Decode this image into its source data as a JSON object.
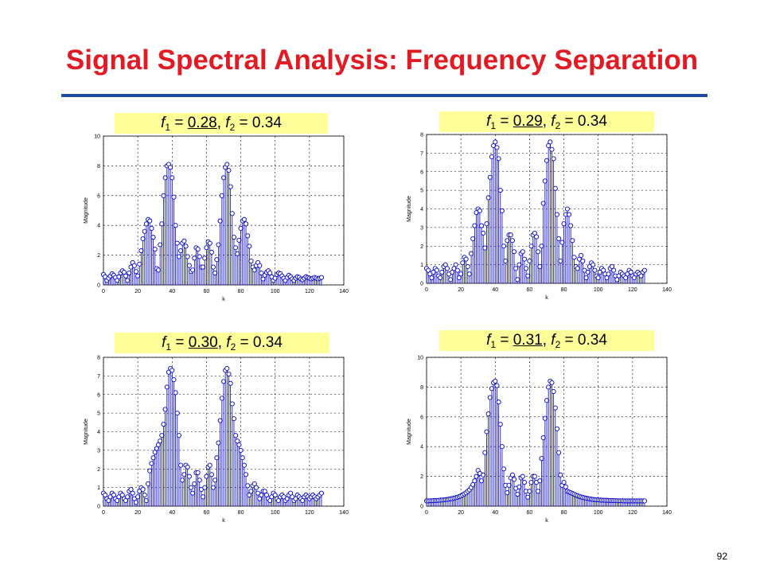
{
  "slide": {
    "title": "Signal Spectral Analysis: Frequency Separation",
    "page_number": "92",
    "title_color": "#e01b24",
    "rule_color": "#1f4aa8",
    "caption_background": "#ffff99",
    "stem_color": "#0000cc"
  },
  "chart_data": [
    {
      "type": "stem",
      "caption": {
        "f1_label": "f",
        "f1_sub": "1",
        "eq1": " = ",
        "f1_value": "0.28",
        "sep": ", ",
        "f2_label": "f",
        "f2_sub": "2",
        "eq2": " = ",
        "f2_value": "0.34"
      },
      "xlabel": "k",
      "ylabel": "Magnitude",
      "xlim": [
        0,
        140
      ],
      "ylim": [
        0,
        10
      ],
      "xticks": [
        "0",
        "20",
        "40",
        "60",
        "80",
        "100",
        "120",
        "140"
      ],
      "yticks": [
        "0",
        "2",
        "4",
        "6",
        "8",
        "10"
      ],
      "grid": true,
      "x": [
        0,
        1,
        2,
        3,
        4,
        5,
        6,
        7,
        8,
        9,
        10,
        11,
        12,
        13,
        14,
        15,
        16,
        17,
        18,
        19,
        20,
        21,
        22,
        23,
        24,
        25,
        26,
        27,
        28,
        29,
        30,
        31,
        32,
        33,
        34,
        35,
        36,
        37,
        38,
        39,
        40,
        41,
        42,
        43,
        44,
        45,
        46,
        47,
        48,
        49,
        50,
        51,
        52,
        53,
        54,
        55,
        56,
        57,
        58,
        59,
        60,
        61,
        62,
        63,
        64,
        65,
        66,
        67,
        68,
        69,
        70,
        71,
        72,
        73,
        74,
        75,
        76,
        77,
        78,
        79,
        80,
        81,
        82,
        83,
        84,
        85,
        86,
        87,
        88,
        89,
        90,
        91,
        92,
        93,
        94,
        95,
        96,
        97,
        98,
        99,
        100,
        101,
        102,
        103,
        104,
        105,
        106,
        107,
        108,
        109,
        110,
        111,
        112,
        113,
        114,
        115,
        116,
        117,
        118,
        119,
        120,
        121,
        122,
        123,
        124,
        125,
        126,
        127
      ],
      "values": [
        0.7,
        0.55,
        0.3,
        0.45,
        0.6,
        0.75,
        0.65,
        0.5,
        0.3,
        0.55,
        0.8,
        0.95,
        0.85,
        0.6,
        0.3,
        0.8,
        1.2,
        1.5,
        1.3,
        0.9,
        0.6,
        1.4,
        2.3,
        3.1,
        3.6,
        4.1,
        4.4,
        4.3,
        3.8,
        3.2,
        2.4,
        1.1,
        1.0,
        2.7,
        4.1,
        6.0,
        7.2,
        8.0,
        8.1,
        7.9,
        7.2,
        5.9,
        4.0,
        2.8,
        1.9,
        2.3,
        2.8,
        2.95,
        2.6,
        1.9,
        1.3,
        0.9,
        1.0,
        1.8,
        2.5,
        2.4,
        1.9,
        1.2,
        1.2,
        1.8,
        2.5,
        2.9,
        2.8,
        2.2,
        1.2,
        0.8,
        1.7,
        2.7,
        4.3,
        6.0,
        7.2,
        7.9,
        8.1,
        7.7,
        6.6,
        4.8,
        3.2,
        2.5,
        2.1,
        3.0,
        3.8,
        4.3,
        4.4,
        4.1,
        3.3,
        2.6,
        1.6,
        1.2,
        1.0,
        1.3,
        1.5,
        1.3,
        0.8,
        0.4,
        0.65,
        0.85,
        0.95,
        0.8,
        0.55,
        0.3,
        0.45,
        0.7,
        0.8,
        0.75,
        0.6,
        0.45,
        0.3,
        0.5,
        0.65,
        0.55,
        0.4,
        0.3,
        0.45,
        0.55,
        0.5,
        0.4,
        0.35,
        0.45,
        0.55,
        0.5,
        0.45,
        0.4,
        0.45,
        0.5,
        0.45,
        0.4,
        0.45,
        0.5
      ]
    },
    {
      "type": "stem",
      "caption": {
        "f1_label": "f",
        "f1_sub": "1",
        "eq1": " = ",
        "f1_value": "0.29",
        "sep": ", ",
        "f2_label": "f",
        "f2_sub": "2",
        "eq2": " = ",
        "f2_value": "0.34"
      },
      "xlabel": "k",
      "ylabel": "Magnitude",
      "xlim": [
        0,
        140
      ],
      "ylim": [
        0,
        8
      ],
      "xticks": [
        "0",
        "20",
        "40",
        "60",
        "80",
        "100",
        "120",
        "140"
      ],
      "yticks": [
        "0",
        "1",
        "2",
        "3",
        "4",
        "5",
        "6",
        "7",
        "8"
      ],
      "grid": true,
      "x": [
        0,
        1,
        2,
        3,
        4,
        5,
        6,
        7,
        8,
        9,
        10,
        11,
        12,
        13,
        14,
        15,
        16,
        17,
        18,
        19,
        20,
        21,
        22,
        23,
        24,
        25,
        26,
        27,
        28,
        29,
        30,
        31,
        32,
        33,
        34,
        35,
        36,
        37,
        38,
        39,
        40,
        41,
        42,
        43,
        44,
        45,
        46,
        47,
        48,
        49,
        50,
        51,
        52,
        53,
        54,
        55,
        56,
        57,
        58,
        59,
        60,
        61,
        62,
        63,
        64,
        65,
        66,
        67,
        68,
        69,
        70,
        71,
        72,
        73,
        74,
        75,
        76,
        77,
        78,
        79,
        80,
        81,
        82,
        83,
        84,
        85,
        86,
        87,
        88,
        89,
        90,
        91,
        92,
        93,
        94,
        95,
        96,
        97,
        98,
        99,
        100,
        101,
        102,
        103,
        104,
        105,
        106,
        107,
        108,
        109,
        110,
        111,
        112,
        113,
        114,
        115,
        116,
        117,
        118,
        119,
        120,
        121,
        122,
        123,
        124,
        125,
        126,
        127
      ],
      "values": [
        0.8,
        0.7,
        0.5,
        0.3,
        0.6,
        0.8,
        0.7,
        0.4,
        0.3,
        0.6,
        0.9,
        1.0,
        0.8,
        0.5,
        0.2,
        0.6,
        0.8,
        1.0,
        0.7,
        0.3,
        0.5,
        1.1,
        1.4,
        1.3,
        0.9,
        0.5,
        1.6,
        2.4,
        3.1,
        3.8,
        4.0,
        3.9,
        3.1,
        2.7,
        1.9,
        3.2,
        4.6,
        5.7,
        6.8,
        7.4,
        7.6,
        7.3,
        6.7,
        5.0,
        3.9,
        2.0,
        1.2,
        2.3,
        2.6,
        2.6,
        2.3,
        1.7,
        0.8,
        0.2,
        1.0,
        1.6,
        1.7,
        1.3,
        0.8,
        0.4,
        1.2,
        2.0,
        2.6,
        2.7,
        2.5,
        1.7,
        0.9,
        2.0,
        4.3,
        5.5,
        6.6,
        7.4,
        7.6,
        7.2,
        6.7,
        5.1,
        3.7,
        2.4,
        1.2,
        2.2,
        3.2,
        3.7,
        4.0,
        3.7,
        3.1,
        2.3,
        1.4,
        0.9,
        0.8,
        1.3,
        1.5,
        1.2,
        0.7,
        0.3,
        0.6,
        0.9,
        1.1,
        1.0,
        0.7,
        0.4,
        0.3,
        0.6,
        0.8,
        0.7,
        0.5,
        0.3,
        0.5,
        0.8,
        0.9,
        0.7,
        0.4,
        0.2,
        0.4,
        0.6,
        0.5,
        0.4,
        0.3,
        0.5,
        0.7,
        0.6,
        0.4,
        0.3,
        0.5,
        0.6,
        0.5,
        0.4,
        0.6,
        0.7
      ]
    },
    {
      "type": "stem",
      "caption": {
        "f1_label": "f",
        "f1_sub": "1",
        "eq1": " = ",
        "f1_value": "0.30",
        "sep": ", ",
        "f2_label": "f",
        "f2_sub": "2",
        "eq2": " = ",
        "f2_value": "0.34"
      },
      "xlabel": "k",
      "ylabel": "Magnitude",
      "xlim": [
        0,
        140
      ],
      "ylim": [
        0,
        8
      ],
      "xticks": [
        "0",
        "20",
        "40",
        "60",
        "80",
        "100",
        "120",
        "140"
      ],
      "yticks": [
        "0",
        "1",
        "2",
        "3",
        "4",
        "5",
        "6",
        "7",
        "8"
      ],
      "grid": true,
      "x": [
        0,
        1,
        2,
        3,
        4,
        5,
        6,
        7,
        8,
        9,
        10,
        11,
        12,
        13,
        14,
        15,
        16,
        17,
        18,
        19,
        20,
        21,
        22,
        23,
        24,
        25,
        26,
        27,
        28,
        29,
        30,
        31,
        32,
        33,
        34,
        35,
        36,
        37,
        38,
        39,
        40,
        41,
        42,
        43,
        44,
        45,
        46,
        47,
        48,
        49,
        50,
        51,
        52,
        53,
        54,
        55,
        56,
        57,
        58,
        59,
        60,
        61,
        62,
        63,
        64,
        65,
        66,
        67,
        68,
        69,
        70,
        71,
        72,
        73,
        74,
        75,
        76,
        77,
        78,
        79,
        80,
        81,
        82,
        83,
        84,
        85,
        86,
        87,
        88,
        89,
        90,
        91,
        92,
        93,
        94,
        95,
        96,
        97,
        98,
        99,
        100,
        101,
        102,
        103,
        104,
        105,
        106,
        107,
        108,
        109,
        110,
        111,
        112,
        113,
        114,
        115,
        116,
        117,
        118,
        119,
        120,
        121,
        122,
        123,
        124,
        125,
        126,
        127
      ],
      "values": [
        0.7,
        0.6,
        0.4,
        0.3,
        0.5,
        0.7,
        0.6,
        0.4,
        0.3,
        0.5,
        0.7,
        0.6,
        0.4,
        0.3,
        0.5,
        0.8,
        0.9,
        0.7,
        0.4,
        0.2,
        0.5,
        0.8,
        1.0,
        0.9,
        0.6,
        0.3,
        1.2,
        1.9,
        2.3,
        2.6,
        2.9,
        3.1,
        3.3,
        3.5,
        3.8,
        4.4,
        5.2,
        6.4,
        7.2,
        7.4,
        7.3,
        6.8,
        6.1,
        5.0,
        3.8,
        2.2,
        1.4,
        1.7,
        2.2,
        2.1,
        1.6,
        1.0,
        0.7,
        1.2,
        1.8,
        1.8,
        1.4,
        0.9,
        0.5,
        1.0,
        1.6,
        2.1,
        2.2,
        1.7,
        1.0,
        1.4,
        2.6,
        3.4,
        4.6,
        5.8,
        6.7,
        7.3,
        7.4,
        7.1,
        6.6,
        5.5,
        4.7,
        3.8,
        3.5,
        3.3,
        3.0,
        2.6,
        2.2,
        1.7,
        1.1,
        0.6,
        0.8,
        1.1,
        1.2,
        1.0,
        0.7,
        0.4,
        0.6,
        0.8,
        0.8,
        0.6,
        0.4,
        0.3,
        0.5,
        0.7,
        0.6,
        0.4,
        0.3,
        0.5,
        0.6,
        0.5,
        0.3,
        0.4,
        0.6,
        0.7,
        0.5,
        0.3,
        0.4,
        0.6,
        0.5,
        0.4,
        0.3,
        0.5,
        0.6,
        0.5,
        0.4,
        0.5,
        0.6,
        0.5,
        0.4,
        0.5,
        0.6,
        0.7
      ]
    },
    {
      "type": "stem",
      "caption": {
        "f1_label": "f",
        "f1_sub": "1",
        "eq1": " = ",
        "f1_value": "0.31",
        "sep": ", ",
        "f2_label": "f",
        "f2_sub": "2",
        "eq2": " = ",
        "f2_value": "0.34"
      },
      "xlabel": "k",
      "ylabel": "Magnitude",
      "xlim": [
        0,
        140
      ],
      "ylim": [
        0,
        10
      ],
      "xticks": [
        "0",
        "20",
        "40",
        "60",
        "80",
        "100",
        "120",
        "140"
      ],
      "yticks": [
        "0",
        "2",
        "4",
        "6",
        "8",
        "10"
      ],
      "grid": true,
      "x": [
        0,
        1,
        2,
        3,
        4,
        5,
        6,
        7,
        8,
        9,
        10,
        11,
        12,
        13,
        14,
        15,
        16,
        17,
        18,
        19,
        20,
        21,
        22,
        23,
        24,
        25,
        26,
        27,
        28,
        29,
        30,
        31,
        32,
        33,
        34,
        35,
        36,
        37,
        38,
        39,
        40,
        41,
        42,
        43,
        44,
        45,
        46,
        47,
        48,
        49,
        50,
        51,
        52,
        53,
        54,
        55,
        56,
        57,
        58,
        59,
        60,
        61,
        62,
        63,
        64,
        65,
        66,
        67,
        68,
        69,
        70,
        71,
        72,
        73,
        74,
        75,
        76,
        77,
        78,
        79,
        80,
        81,
        82,
        83,
        84,
        85,
        86,
        87,
        88,
        89,
        90,
        91,
        92,
        93,
        94,
        95,
        96,
        97,
        98,
        99,
        100,
        101,
        102,
        103,
        104,
        105,
        106,
        107,
        108,
        109,
        110,
        111,
        112,
        113,
        114,
        115,
        116,
        117,
        118,
        119,
        120,
        121,
        122,
        123,
        124,
        125,
        126,
        127
      ],
      "values": [
        0.35,
        0.35,
        0.36,
        0.36,
        0.37,
        0.38,
        0.38,
        0.39,
        0.4,
        0.41,
        0.42,
        0.44,
        0.45,
        0.47,
        0.49,
        0.51,
        0.54,
        0.57,
        0.6,
        0.64,
        0.69,
        0.75,
        0.82,
        0.9,
        1.0,
        1.1,
        1.25,
        1.45,
        1.7,
        2.0,
        2.4,
        2.2,
        1.7,
        2.1,
        3.6,
        5.0,
        6.2,
        7.3,
        7.9,
        8.3,
        8.4,
        8.1,
        7.0,
        5.5,
        4.0,
        2.5,
        1.4,
        0.9,
        1.4,
        1.9,
        2.1,
        1.8,
        1.2,
        0.8,
        1.3,
        1.9,
        2.0,
        1.6,
        1.0,
        0.6,
        1.0,
        1.6,
        2.0,
        2.0,
        1.6,
        1.0,
        1.7,
        3.2,
        4.6,
        5.9,
        7.1,
        8.0,
        8.4,
        8.3,
        7.7,
        6.6,
        5.2,
        3.6,
        2.1,
        1.4,
        1.6,
        1.3,
        1.0,
        0.95,
        0.9,
        0.85,
        0.8,
        0.74,
        0.7,
        0.66,
        0.62,
        0.59,
        0.56,
        0.53,
        0.51,
        0.49,
        0.47,
        0.45,
        0.44,
        0.43,
        0.42,
        0.41,
        0.4,
        0.4,
        0.39,
        0.39,
        0.38,
        0.38,
        0.37,
        0.37,
        0.37,
        0.36,
        0.36,
        0.36,
        0.36,
        0.35,
        0.35,
        0.35,
        0.35,
        0.35,
        0.35,
        0.35,
        0.35,
        0.35,
        0.35,
        0.35,
        0.35,
        0.35
      ]
    }
  ]
}
